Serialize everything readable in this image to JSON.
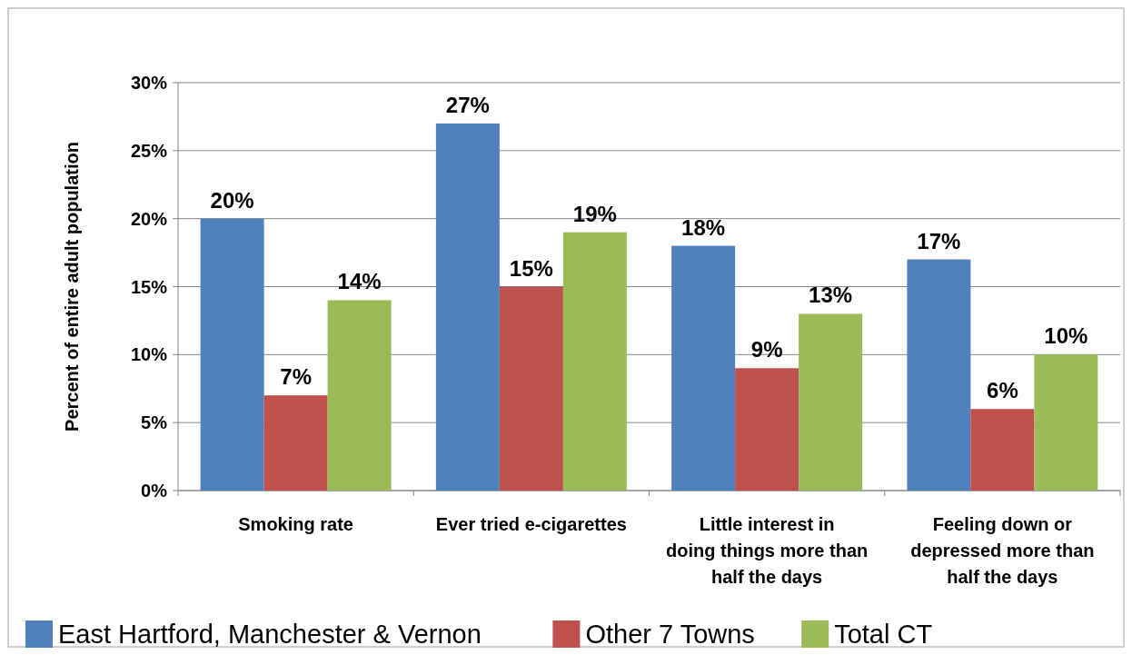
{
  "chart_data": {
    "type": "bar",
    "ylabel": "Percent of entire adult population",
    "categories": [
      "Smoking rate",
      "Ever tried e-cigarettes",
      "Little interest in doing things more than half the days",
      "Feeling down or depressed more than half the days"
    ],
    "series": [
      {
        "name": "East Hartford, Manchester & Vernon",
        "color": "#4f81bd",
        "values": [
          20,
          27,
          18,
          17
        ],
        "value_labels": [
          "20%",
          "27%",
          "18%",
          "17%"
        ]
      },
      {
        "name": "Other 7 Towns",
        "color": "#c0504d",
        "values": [
          7,
          15,
          9,
          6
        ],
        "value_labels": [
          "7%",
          "15%",
          "9%",
          "6%"
        ]
      },
      {
        "name": "Total CT",
        "color": "#9bbb59",
        "values": [
          14,
          19,
          13,
          10
        ],
        "value_labels": [
          "14%",
          "19%",
          "13%",
          "10%"
        ]
      }
    ],
    "ylim": [
      0,
      30
    ],
    "yticks": [
      {
        "value": 0,
        "label": "0%"
      },
      {
        "value": 5,
        "label": "5%"
      },
      {
        "value": 10,
        "label": "10%"
      },
      {
        "value": 15,
        "label": "15%"
      },
      {
        "value": 20,
        "label": "20%"
      },
      {
        "value": 25,
        "label": "25%"
      },
      {
        "value": 30,
        "label": "30%"
      }
    ],
    "grid": "y",
    "legend": "bottom"
  }
}
